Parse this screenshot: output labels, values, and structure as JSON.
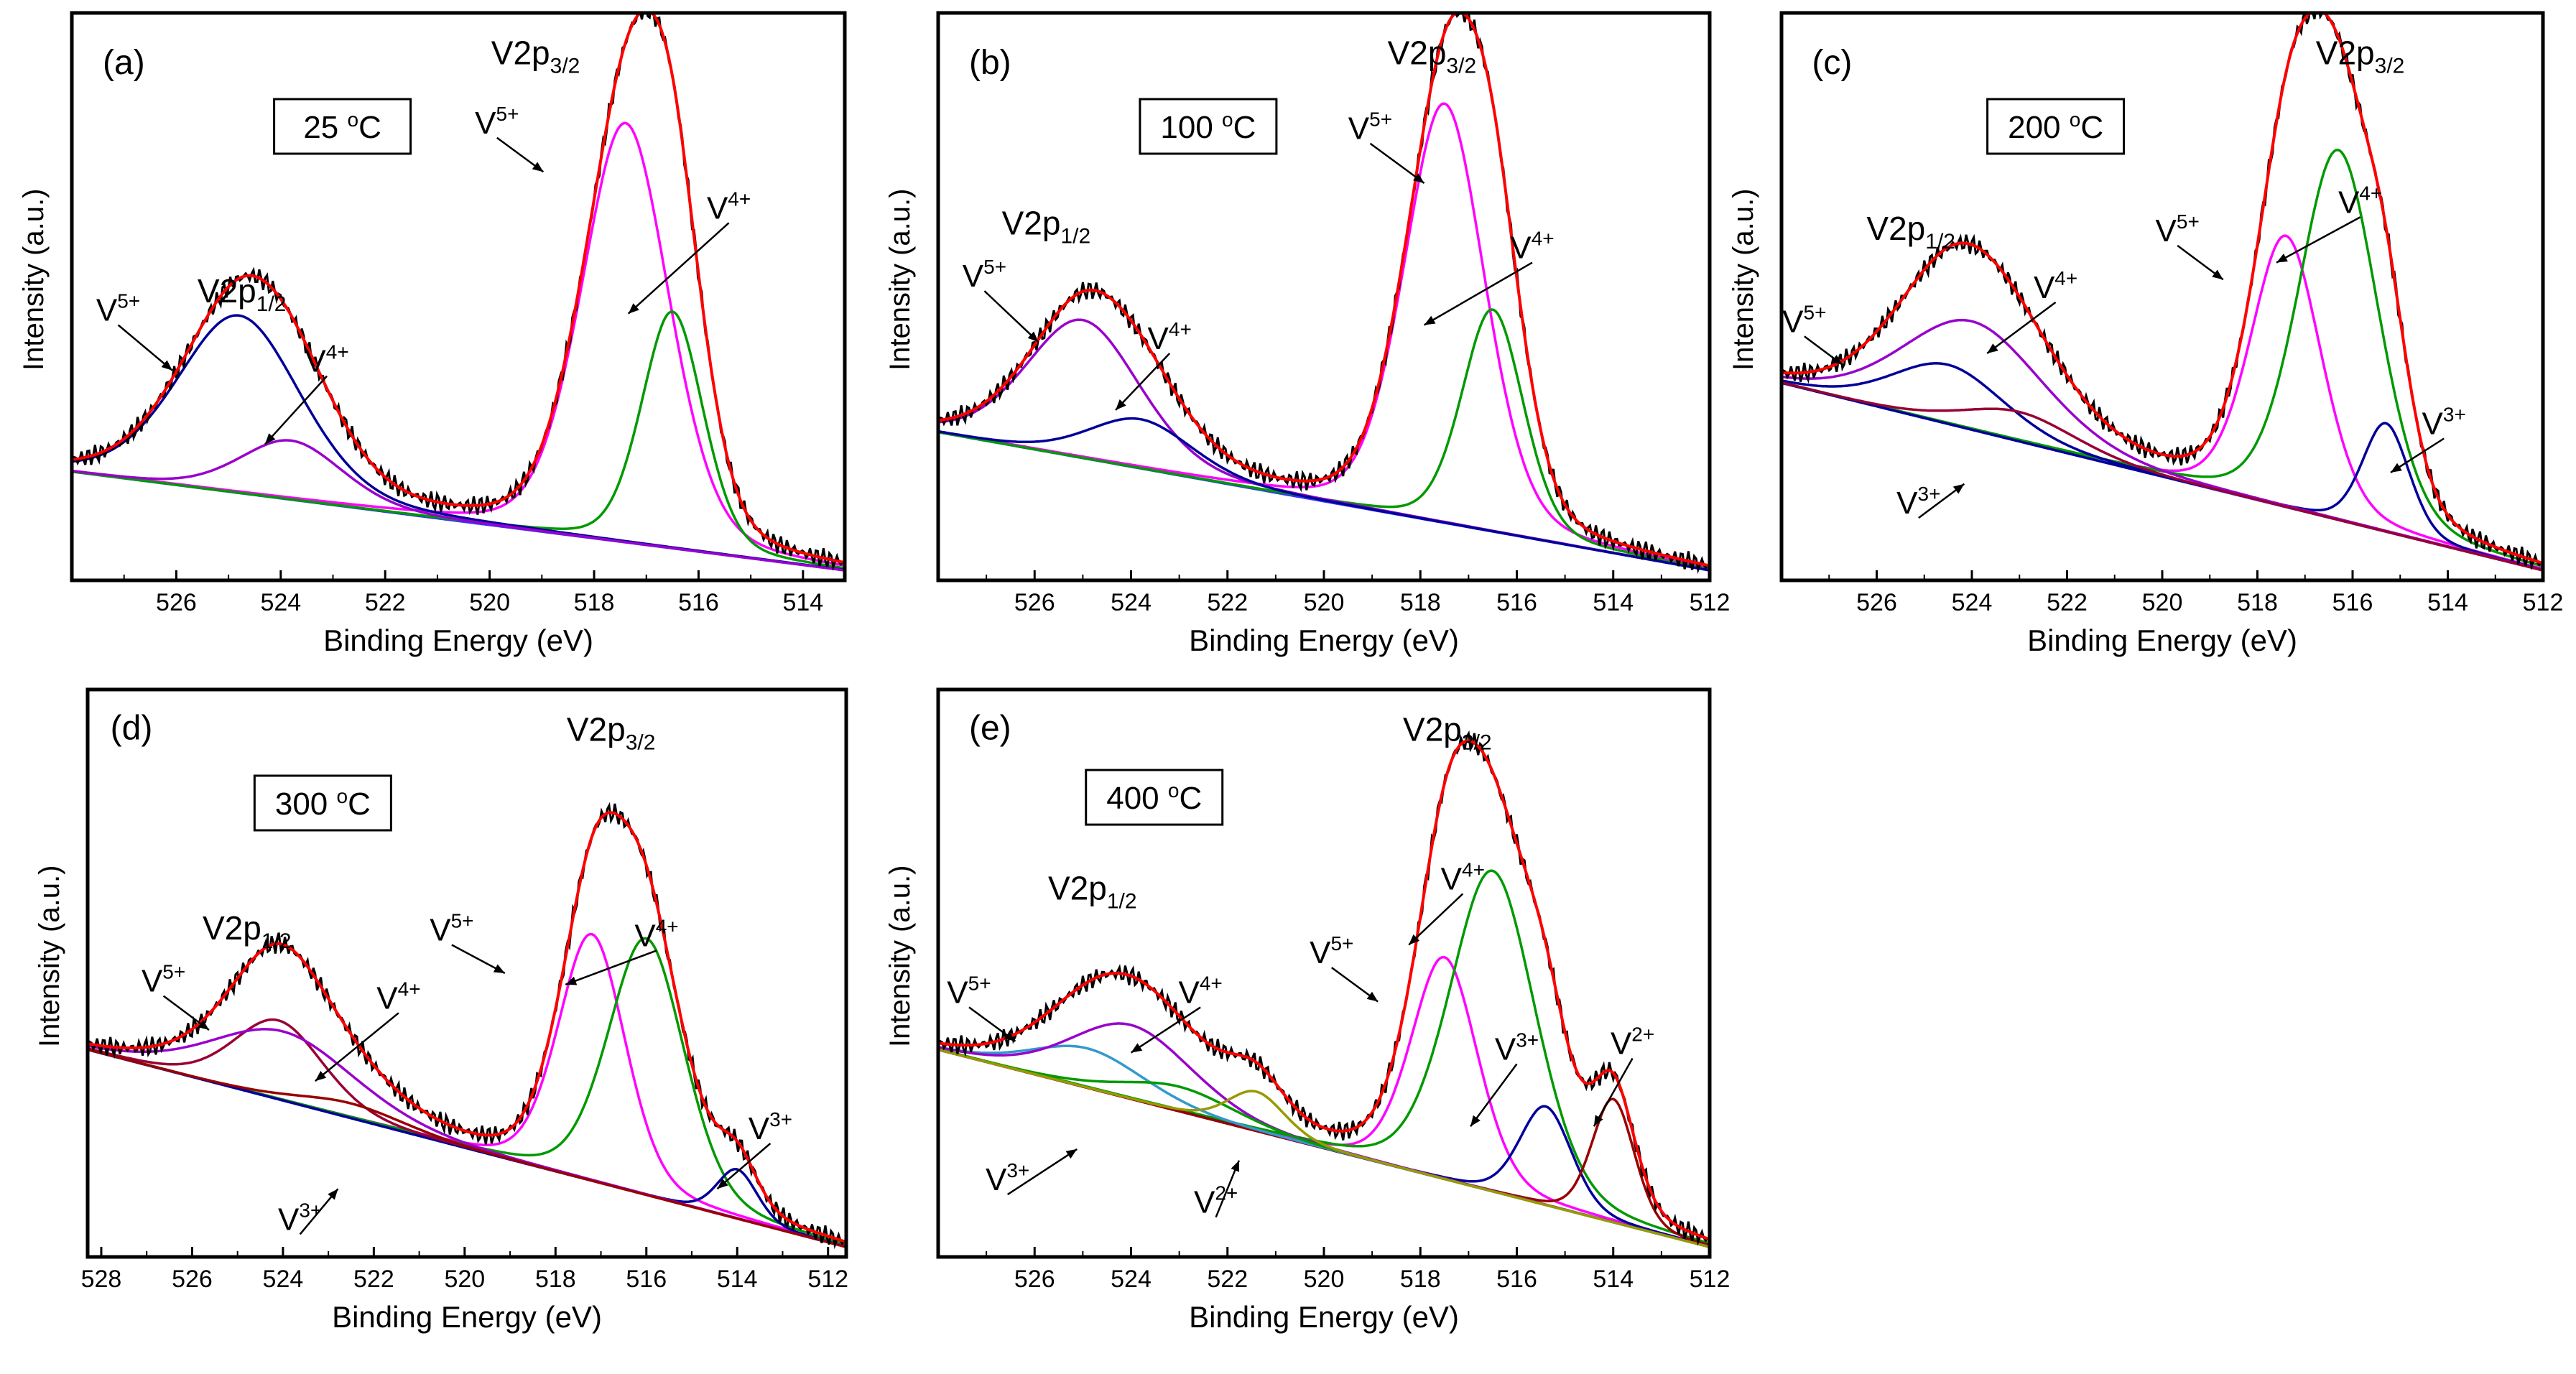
{
  "colors": {
    "raw": "#000000",
    "envelope": "#ff0000",
    "V5+": "#ff00ff",
    "V4+": "#009900",
    "V4+_2p12": "#9900cc",
    "V3+": "#000099",
    "V3+_2p12": "#990033",
    "V2+": "#990000",
    "V2+_2p12": "#999900",
    "background": "#3333ff",
    "V5+_2p12": "#000099",
    "V5+_2p12_e": "#3399cc"
  },
  "chart_data": [
    {
      "id": "a",
      "type": "line",
      "panel_label": "(a)",
      "temperature_label": "25 °C",
      "temp_num": "25",
      "temp_unit": "C",
      "xlabel": "Binding Energy (eV)",
      "ylabel": "Intensity (a.u.)",
      "xlim": [
        528,
        513.2
      ],
      "ylim": [
        0,
        1.15
      ],
      "xticks": [
        526,
        524,
        522,
        520,
        518,
        516,
        514
      ],
      "peak_labels": [
        {
          "text": "V2p",
          "sub": "3/2",
          "region": "V2p3/2"
        },
        {
          "text": "V2p",
          "sub": "1/2",
          "region": "V2p1/2"
        }
      ],
      "series": [
        {
          "name": "V5+ 2p3/2",
          "label": "V",
          "sup": "5+",
          "color_key": "V5+",
          "center": 517.4,
          "height": 0.85,
          "width": 0.85
        },
        {
          "name": "V4+ 2p3/2",
          "label": "V",
          "sup": "4+",
          "color_key": "V4+",
          "center": 516.5,
          "height": 0.48,
          "width": 0.6
        },
        {
          "name": "V5+ 2p1/2",
          "label": "V",
          "sup": "5+",
          "color_key": "V5+_2p12",
          "center": 524.8,
          "height": 0.36,
          "width": 1.2
        },
        {
          "name": "V4+ 2p1/2",
          "label": "V",
          "sup": "4+",
          "color_key": "V4+_2p12",
          "center": 523.8,
          "height": 0.12,
          "width": 1.0
        }
      ],
      "background": {
        "start": 0.22,
        "end": 0.02
      }
    },
    {
      "id": "b",
      "type": "line",
      "panel_label": "(b)",
      "temperature_label": "100 °C",
      "temp_num": "100",
      "temp_unit": "C",
      "xlabel": "Binding Energy (eV)",
      "ylabel": "Intensity (a.u.)",
      "xlim": [
        528,
        512
      ],
      "ylim": [
        0,
        1.15
      ],
      "xticks": [
        526,
        524,
        522,
        520,
        518,
        516,
        514,
        512
      ],
      "peak_labels": [
        {
          "text": "V2p",
          "sub": "3/2",
          "region": "V2p3/2"
        },
        {
          "text": "V2p",
          "sub": "1/2",
          "region": "V2p1/2"
        }
      ],
      "series": [
        {
          "name": "V5+ 2p3/2",
          "label": "V",
          "sup": "5+",
          "color_key": "V5+",
          "center": 517.5,
          "height": 0.85,
          "width": 0.85
        },
        {
          "name": "V4+ 2p3/2",
          "label": "V",
          "sup": "4+",
          "color_key": "V4+",
          "center": 516.5,
          "height": 0.45,
          "width": 0.65
        },
        {
          "name": "V5+ 2p1/2",
          "label": "V",
          "sup": "5+",
          "color_key": "V4+_2p12",
          "center": 525.0,
          "height": 0.28,
          "width": 1.2
        },
        {
          "name": "V4+ 2p1/2",
          "label": "V",
          "sup": "4+",
          "color_key": "V5+_2p12",
          "center": 523.8,
          "height": 0.1,
          "width": 1.1
        }
      ],
      "background": {
        "start": 0.3,
        "end": 0.02
      }
    },
    {
      "id": "c",
      "type": "line",
      "panel_label": "(c)",
      "temperature_label": "200 °C",
      "temp_num": "200",
      "temp_unit": "C",
      "xlabel": "Binding Energy (eV)",
      "ylabel": "Intensity (a.u.)",
      "xlim": [
        528,
        512
      ],
      "ylim": [
        0,
        1.15
      ],
      "xticks": [
        526,
        524,
        522,
        520,
        518,
        516,
        514,
        512
      ],
      "peak_labels": [
        {
          "text": "V2p",
          "sub": "3/2",
          "region": "V2p3/2"
        },
        {
          "text": "V2p",
          "sub": "1/2",
          "region": "V2p1/2"
        }
      ],
      "series": [
        {
          "name": "V5+ 2p3/2",
          "label": "V",
          "sup": "5+",
          "color_key": "V5+",
          "center": 517.4,
          "height": 0.55,
          "width": 0.75
        },
        {
          "name": "V4+ 2p3/2",
          "label": "V",
          "sup": "4+",
          "color_key": "V4+",
          "center": 516.3,
          "height": 0.75,
          "width": 0.85
        },
        {
          "name": "V3+ 2p3/2",
          "label": "V",
          "sup": "3+",
          "color_key": "V3+",
          "center": 515.3,
          "height": 0.22,
          "width": 0.5
        },
        {
          "name": "V5+ 2p1/2",
          "label": "V",
          "sup": "5+",
          "color_key": "V5+_2p12",
          "center": 524.5,
          "height": 0.12,
          "width": 1.2
        },
        {
          "name": "V4+ 2p1/2",
          "label": "V",
          "sup": "4+",
          "color_key": "V4+_2p12",
          "center": 524.0,
          "height": 0.22,
          "width": 1.5
        },
        {
          "name": "V3+ 2p1/2",
          "label": "V",
          "sup": "3+",
          "color_key": "V3+_2p12",
          "center": 523.0,
          "height": 0.06,
          "width": 1.2
        }
      ],
      "background": {
        "start": 0.4,
        "end": 0.02
      }
    },
    {
      "id": "d",
      "type": "line",
      "panel_label": "(d)",
      "temperature_label": "300 °C",
      "temp_num": "300",
      "temp_unit": "C",
      "xlabel": "Binding Energy (eV)",
      "ylabel": "Intensity (a.u.)",
      "xlim": [
        528.3,
        511.6
      ],
      "ylim": [
        0,
        1.15
      ],
      "xticks": [
        528,
        526,
        524,
        522,
        520,
        518,
        516,
        514,
        512
      ],
      "peak_labels": [
        {
          "text": "V2p",
          "sub": "3/2",
          "region": "V2p3/2"
        },
        {
          "text": "V2p",
          "sub": "1/2",
          "region": "V2p1/2"
        }
      ],
      "series": [
        {
          "name": "V5+ 2p3/2",
          "label": "V",
          "sup": "5+",
          "color_key": "V5+",
          "center": 517.2,
          "height": 0.5,
          "width": 0.75
        },
        {
          "name": "V4+ 2p3/2",
          "label": "V",
          "sup": "4+",
          "color_key": "V4+",
          "center": 516.0,
          "height": 0.52,
          "width": 0.85
        },
        {
          "name": "V3+ 2p3/2",
          "label": "V",
          "sup": "3+",
          "color_key": "V3+",
          "center": 514.0,
          "height": 0.1,
          "width": 0.45
        },
        {
          "name": "V5+ 2p1/2",
          "label": "V",
          "sup": "5+",
          "color_key": "V3+_2p12",
          "center": 524.1,
          "height": 0.16,
          "width": 1.0
        },
        {
          "name": "V4+ 2p1/2",
          "label": "V",
          "sup": "4+",
          "color_key": "V4+_2p12",
          "center": 524.0,
          "height": 0.14,
          "width": 1.6
        },
        {
          "name": "V3+ 2p1/2",
          "label": "V",
          "sup": "3+",
          "color_key": "V2+",
          "center": 522.5,
          "height": 0.03,
          "width": 1.2
        }
      ],
      "background": {
        "start": 0.42,
        "end": 0.02
      }
    },
    {
      "id": "e",
      "type": "line",
      "panel_label": "(e)",
      "temperature_label": "400 °C",
      "temp_num": "400",
      "temp_unit": "C",
      "xlabel": "Binding Energy (eV)",
      "ylabel": "Intensity (a.u.)",
      "xlim": [
        528,
        512
      ],
      "ylim": [
        0,
        1.15
      ],
      "xticks": [
        526,
        524,
        522,
        520,
        518,
        516,
        514,
        512
      ],
      "peak_labels": [
        {
          "text": "V2p",
          "sub": "3/2",
          "region": "V2p3/2"
        },
        {
          "text": "V2p",
          "sub": "1/2",
          "region": "V2p1/2"
        }
      ],
      "series": [
        {
          "name": "V5+ 2p3/2",
          "label": "V",
          "sup": "5+",
          "color_key": "V5+",
          "center": 517.5,
          "height": 0.45,
          "width": 0.7
        },
        {
          "name": "V4+ 2p3/2",
          "label": "V",
          "sup": "4+",
          "color_key": "V4+",
          "center": 516.5,
          "height": 0.65,
          "width": 0.9
        },
        {
          "name": "V3+ 2p3/2",
          "label": "V",
          "sup": "3+",
          "color_key": "V3+",
          "center": 515.4,
          "height": 0.2,
          "width": 0.55
        },
        {
          "name": "V2+ 2p3/2",
          "label": "V",
          "sup": "2+",
          "color_key": "V2+",
          "center": 514.0,
          "height": 0.25,
          "width": 0.45
        },
        {
          "name": "V5+ 2p1/2",
          "label": "V",
          "sup": "5+",
          "color_key": "V5+_2p12_e",
          "center": 524.9,
          "height": 0.08,
          "width": 1.2
        },
        {
          "name": "V4+ 2p1/2",
          "label": "V",
          "sup": "4+",
          "color_key": "V4+_2p12",
          "center": 524.0,
          "height": 0.15,
          "width": 1.3
        },
        {
          "name": "V3+ 2p1/2",
          "label": "V",
          "sup": "3+",
          "color_key": "V4+",
          "center": 523.0,
          "height": 0.05,
          "width": 1.2
        },
        {
          "name": "V2+ 2p1/2",
          "label": "V",
          "sup": "2+",
          "color_key": "V2+_2p12",
          "center": 521.4,
          "height": 0.08,
          "width": 0.6
        }
      ],
      "background": {
        "start": 0.42,
        "end": 0.02
      }
    }
  ]
}
